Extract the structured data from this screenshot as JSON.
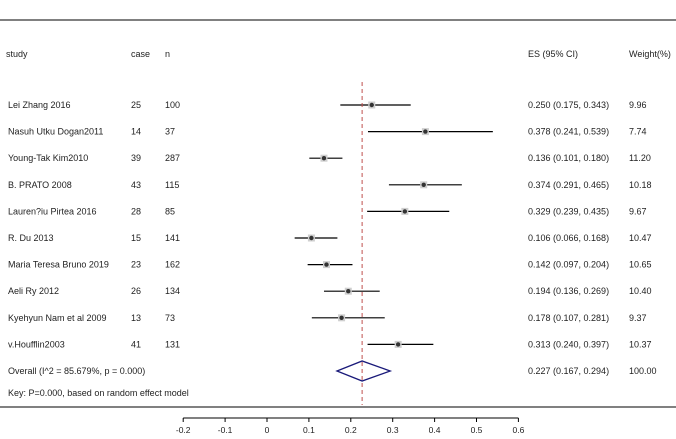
{
  "chart_data": {
    "type": "forest",
    "headers": {
      "study": "study",
      "case": "case",
      "n": "n",
      "es": "ES (95% CI)",
      "weight": "Weight(%)"
    },
    "studies": [
      {
        "study": "Lei Zhang 2016",
        "case": "25",
        "n": "100",
        "es": 0.25,
        "lo": 0.175,
        "hi": 0.343,
        "es_text": "0.250 (0.175, 0.343)",
        "weight": "9.96"
      },
      {
        "study": "Nasuh Utku Dogan2011",
        "case": "14",
        "n": "37",
        "es": 0.378,
        "lo": 0.241,
        "hi": 0.539,
        "es_text": "0.378 (0.241, 0.539)",
        "weight": "7.74"
      },
      {
        "study": "Young-Tak Kim2010",
        "case": "39",
        "n": "287",
        "es": 0.136,
        "lo": 0.101,
        "hi": 0.18,
        "es_text": "0.136 (0.101, 0.180)",
        "weight": "11.20"
      },
      {
        "study": "B. PRATO 2008",
        "case": "43",
        "n": "115",
        "es": 0.374,
        "lo": 0.291,
        "hi": 0.465,
        "es_text": "0.374 (0.291, 0.465)",
        "weight": "10.18"
      },
      {
        "study": "Lauren?iu Pirtea 2016",
        "case": "28",
        "n": "85",
        "es": 0.329,
        "lo": 0.239,
        "hi": 0.435,
        "es_text": "0.329 (0.239, 0.435)",
        "weight": "9.67"
      },
      {
        "study": "R. Du 2013",
        "case": "15",
        "n": "141",
        "es": 0.106,
        "lo": 0.066,
        "hi": 0.168,
        "es_text": "0.106 (0.066, 0.168)",
        "weight": "10.47"
      },
      {
        "study": "Maria Teresa Bruno 2019",
        "case": "23",
        "n": "162",
        "es": 0.142,
        "lo": 0.097,
        "hi": 0.204,
        "es_text": "0.142 (0.097, 0.204)",
        "weight": "10.65"
      },
      {
        "study": "Aeli Ry 2012",
        "case": "26",
        "n": "134",
        "es": 0.194,
        "lo": 0.136,
        "hi": 0.269,
        "es_text": "0.194 (0.136, 0.269)",
        "weight": "10.40"
      },
      {
        "study": "Kyehyun Nam et al 2009",
        "case": "13",
        "n": "73",
        "es": 0.178,
        "lo": 0.107,
        "hi": 0.281,
        "es_text": "0.178 (0.107, 0.281)",
        "weight": "9.37"
      },
      {
        "study": "v.Houfflin2003",
        "case": "41",
        "n": "131",
        "es": 0.313,
        "lo": 0.24,
        "hi": 0.397,
        "es_text": "0.313 (0.240, 0.397)",
        "weight": "10.37"
      }
    ],
    "overall": {
      "label": "Overall  (I^2 = 85.679%, p = 0.000)",
      "es": 0.227,
      "lo": 0.167,
      "hi": 0.294,
      "es_text": "0.227 (0.167, 0.294)",
      "weight": "100.00"
    },
    "key_note": "Key: P=0.000, based on random effect model",
    "x_ticks": [
      "-0.2",
      "-0.1",
      "0",
      "0.1",
      "0.2",
      "0.3",
      "0.4",
      "0.5",
      "0.6"
    ],
    "xlim": [
      -0.2,
      0.6
    ],
    "reference_line": 0.227,
    "colors": {
      "ci_line": "#000000",
      "point": "#333333",
      "reference_line": "#c0504d",
      "diamond": "#1a1a7a",
      "rule": "#000000"
    }
  }
}
